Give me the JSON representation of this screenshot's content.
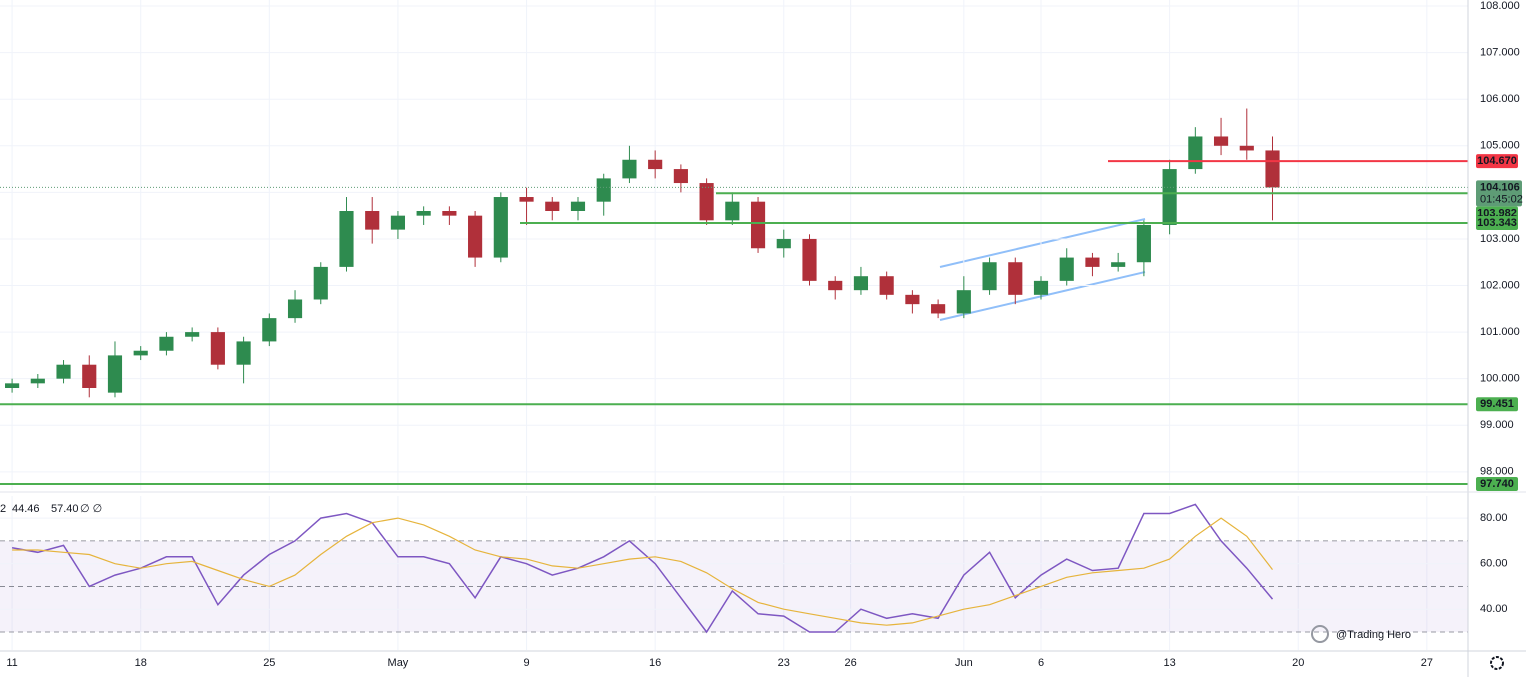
{
  "chart_data": [
    {
      "type": "candlestick",
      "up_color": "#2e8b4f",
      "down_color": "#b0303a",
      "open": [
        99.8,
        99.9,
        100.0,
        100.3,
        99.7,
        100.5,
        100.6,
        100.9,
        101.0,
        100.3,
        100.8,
        101.3,
        101.7,
        102.4,
        103.6,
        103.2,
        103.5,
        103.6,
        103.5,
        102.6,
        103.9,
        103.8,
        103.6,
        103.8,
        104.3,
        104.7,
        104.5,
        104.2,
        103.4,
        103.8,
        102.8,
        103.0,
        102.1,
        101.9,
        102.2,
        101.8,
        101.6,
        101.4,
        101.9,
        102.5,
        101.8,
        102.1,
        102.6,
        102.4,
        102.5,
        103.3,
        104.5,
        105.2,
        105.0,
        104.9
      ],
      "high": [
        100.0,
        100.1,
        100.4,
        100.5,
        100.8,
        100.7,
        101.0,
        101.1,
        101.1,
        100.9,
        101.4,
        101.9,
        102.5,
        103.9,
        103.9,
        103.6,
        103.7,
        103.7,
        103.6,
        104.0,
        104.1,
        103.9,
        103.9,
        104.4,
        105.0,
        104.9,
        104.6,
        104.3,
        104.0,
        103.9,
        103.2,
        103.1,
        102.2,
        102.4,
        102.3,
        101.9,
        101.7,
        102.2,
        102.6,
        102.6,
        102.2,
        102.8,
        102.7,
        102.7,
        103.4,
        104.7,
        105.4,
        105.6,
        105.8,
        105.2
      ],
      "low": [
        99.7,
        99.8,
        99.9,
        99.6,
        99.6,
        100.4,
        100.5,
        100.8,
        100.2,
        99.9,
        100.7,
        101.2,
        101.6,
        102.3,
        102.9,
        103.0,
        103.3,
        103.3,
        102.4,
        102.5,
        103.3,
        103.4,
        103.4,
        103.5,
        104.2,
        104.3,
        104.0,
        103.3,
        103.3,
        102.7,
        102.6,
        102.0,
        101.7,
        101.8,
        101.7,
        101.4,
        101.3,
        101.3,
        101.8,
        101.6,
        101.7,
        102.0,
        102.2,
        102.3,
        102.2,
        103.1,
        104.4,
        104.8,
        104.7,
        103.4
      ],
      "close": [
        99.9,
        100.0,
        100.3,
        99.8,
        100.5,
        100.6,
        100.9,
        101.0,
        100.3,
        100.8,
        101.3,
        101.7,
        102.4,
        103.6,
        103.2,
        103.5,
        103.6,
        103.5,
        102.6,
        103.9,
        103.8,
        103.6,
        103.8,
        104.3,
        104.7,
        104.5,
        104.2,
        103.4,
        103.8,
        102.8,
        103.0,
        102.1,
        101.9,
        102.2,
        101.8,
        101.6,
        101.4,
        101.9,
        102.5,
        101.8,
        102.1,
        102.6,
        102.4,
        102.5,
        103.3,
        104.5,
        105.2,
        105.0,
        104.9,
        104.106
      ],
      "xlim": [
        -0.47,
        56.6
      ],
      "xticks": [
        {
          "value": 0,
          "label": "11"
        },
        {
          "value": 5,
          "label": "18"
        },
        {
          "value": 10,
          "label": "25"
        },
        {
          "value": 15,
          "label": "May"
        },
        {
          "value": 20,
          "label": "9"
        },
        {
          "value": 25,
          "label": "16"
        },
        {
          "value": 30,
          "label": "23"
        },
        {
          "value": 32.6,
          "label": "26"
        },
        {
          "value": 37,
          "label": "Jun"
        },
        {
          "value": 40,
          "label": "6"
        },
        {
          "value": 45,
          "label": "13"
        },
        {
          "value": 50,
          "label": "20"
        },
        {
          "value": 55,
          "label": "27"
        }
      ],
      "ylim": [
        97.61,
        108.13
      ],
      "yticks": [
        {
          "value": 98,
          "label": "98.000"
        },
        {
          "value": 99,
          "label": "99.000"
        },
        {
          "value": 100,
          "label": "100.000"
        },
        {
          "value": 101,
          "label": "101.000"
        },
        {
          "value": 102,
          "label": "102.000"
        },
        {
          "value": 103,
          "label": "103.000"
        },
        {
          "value": 104,
          "label": "104.000"
        },
        {
          "value": 105,
          "label": "105.000"
        },
        {
          "value": 106,
          "label": "106.000"
        },
        {
          "value": 107,
          "label": "107.000"
        },
        {
          "value": 108,
          "label": "108.000"
        }
      ],
      "grid": true,
      "levels": [
        {
          "value": 104.67,
          "label": "104.670",
          "color": "#f23645"
        },
        {
          "value": 103.982,
          "label": "103.982",
          "color": "#4caf50"
        },
        {
          "value": 103.343,
          "label": "103.343",
          "color": "#4caf50"
        },
        {
          "value": 99.451,
          "label": "99.451",
          "color": "#4caf50"
        },
        {
          "value": 97.74,
          "label": "97.740",
          "color": "#4caf50"
        }
      ],
      "current_price": {
        "value": 104.106,
        "label": "104.106",
        "countdown": "01:45:02",
        "color": "#5e9c76"
      },
      "watermark": "@Trading Hero"
    },
    {
      "type": "line",
      "legend_prefix": "2",
      "legend_suffix": "∅ ∅",
      "series": [
        {
          "color": "#7e57c2",
          "last_label": "44.46",
          "values": [
            67,
            65,
            68,
            50,
            55,
            58,
            63,
            63,
            42,
            55,
            64,
            70,
            80,
            82,
            78,
            63,
            63,
            60,
            45,
            63,
            60,
            55,
            58,
            63,
            70,
            60,
            45,
            30,
            48,
            38,
            37,
            30,
            30,
            40,
            36,
            38,
            36,
            55,
            65,
            45,
            55,
            62,
            57,
            58,
            82,
            82,
            86,
            70,
            58,
            44.46
          ]
        },
        {
          "color": "#e6b43c",
          "last_label": "57.40",
          "values": [
            66,
            66,
            65,
            64,
            60,
            58,
            60,
            61,
            57,
            53,
            50,
            55,
            64,
            72,
            78,
            80,
            77,
            72,
            66,
            63,
            62,
            59,
            58,
            60,
            62,
            63,
            61,
            56,
            49,
            43,
            40,
            38,
            36,
            34,
            33,
            34,
            37,
            40,
            42,
            46,
            50,
            54,
            56,
            57,
            58,
            62,
            72,
            80,
            72,
            57.4
          ]
        }
      ],
      "bands": [
        70,
        50,
        30
      ],
      "ylim": [
        22.1,
        89.7
      ],
      "yticks": [
        {
          "value": 40,
          "label": "40.00"
        },
        {
          "value": 60,
          "label": "60.00"
        },
        {
          "value": 80,
          "label": "80.00"
        }
      ]
    }
  ]
}
